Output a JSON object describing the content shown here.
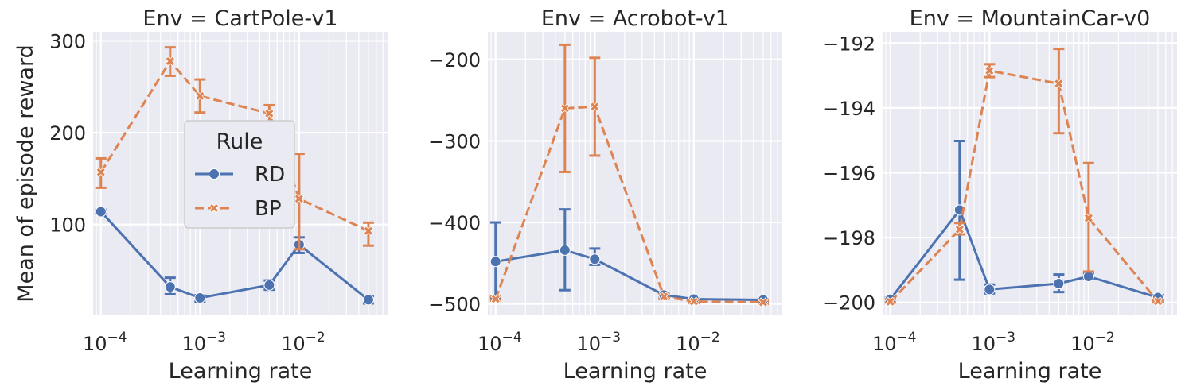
{
  "colors": {
    "RD": "#4c72b0",
    "BP": "#dd8452"
  },
  "legend": {
    "title": "Rule",
    "placement": "center (first panel)",
    "entries": [
      {
        "name": "RD",
        "marker": "circle",
        "style": "solid"
      },
      {
        "name": "BP",
        "marker": "x",
        "style": "dashed"
      }
    ]
  },
  "chart_data": [
    {
      "type": "line",
      "title": "Env = CartPole-v1",
      "xlabel": "Learning rate",
      "ylabel": "Mean of episode reward",
      "xscale": "log",
      "xlim": [
        8.35e-05,
        0.078
      ],
      "ylim": [
        1,
        310
      ],
      "xticks": [
        {
          "mantissa": "10",
          "exp": "−4"
        },
        {
          "mantissa": "10",
          "exp": "−3"
        },
        {
          "mantissa": "10",
          "exp": "−2"
        }
      ],
      "yticks": [
        "100",
        "200",
        "300"
      ],
      "ytick_values": [
        100,
        200,
        300
      ],
      "grid": true,
      "x": [
        0.0001,
        0.0005,
        0.001,
        0.005,
        0.01,
        0.05
      ],
      "series": [
        {
          "name": "RD",
          "y": [
            114,
            32,
            20,
            34,
            78,
            18
          ],
          "err_low": [
            112,
            24,
            16,
            29,
            69,
            14
          ],
          "err_high": [
            116,
            42,
            23,
            39,
            86,
            22
          ]
        },
        {
          "name": "BP",
          "y": [
            157,
            278,
            240,
            221,
            128,
            93
          ],
          "err_low": [
            140,
            262,
            222,
            211,
            73,
            77
          ],
          "err_high": [
            172,
            293,
            258,
            230,
            177,
            102
          ]
        }
      ]
    },
    {
      "type": "line",
      "title": "Env = Acrobot-v1",
      "xlabel": "Learning rate",
      "ylabel": "",
      "xscale": "log",
      "xlim": [
        8.35e-05,
        0.078
      ],
      "ylim": [
        -514,
        -166
      ],
      "xticks": [
        {
          "mantissa": "10",
          "exp": "−4"
        },
        {
          "mantissa": "10",
          "exp": "−3"
        },
        {
          "mantissa": "10",
          "exp": "−2"
        }
      ],
      "yticks": [
        "−500",
        "−400",
        "−300",
        "−200"
      ],
      "ytick_values": [
        -500,
        -400,
        -300,
        -200
      ],
      "grid": true,
      "x": [
        0.0001,
        0.0005,
        0.001,
        0.005,
        0.01,
        0.05
      ],
      "series": [
        {
          "name": "RD",
          "y": [
            -448,
            -434,
            -445,
            -489,
            -494,
            -495
          ],
          "err_low": [
            -492,
            -483,
            -452,
            -492,
            -496,
            -497
          ],
          "err_high": [
            -400,
            -384,
            -432,
            -487,
            -493,
            -494
          ]
        },
        {
          "name": "BP",
          "y": [
            -494,
            -260,
            -258,
            -491,
            -497,
            -498
          ],
          "err_low": [
            -496,
            -338,
            -318,
            -494,
            -499,
            -500
          ],
          "err_high": [
            -491,
            -182,
            -198,
            -488,
            -495,
            -496
          ]
        }
      ]
    },
    {
      "type": "line",
      "title": "Env = MountainCar-v0",
      "xlabel": "Learning rate",
      "ylabel": "",
      "xscale": "log",
      "xlim": [
        8.35e-05,
        0.078
      ],
      "ylim": [
        -200.4,
        -191.65
      ],
      "xticks": [
        {
          "mantissa": "10",
          "exp": "−4"
        },
        {
          "mantissa": "10",
          "exp": "−3"
        },
        {
          "mantissa": "10",
          "exp": "−2"
        }
      ],
      "yticks": [
        "−200",
        "−198",
        "−196",
        "−194",
        "−192"
      ],
      "ytick_values": [
        -200,
        -198,
        -196,
        -194,
        -192
      ],
      "grid": true,
      "x": [
        0.0001,
        0.0005,
        0.001,
        0.005,
        0.01,
        0.05
      ],
      "series": [
        {
          "name": "RD",
          "y": [
            -199.9,
            -197.15,
            -199.6,
            -199.42,
            -199.2,
            -199.85
          ],
          "err_low": [
            -200.0,
            -199.3,
            -199.72,
            -199.68,
            -199.28,
            -199.92
          ],
          "err_high": [
            -199.85,
            -195.02,
            -199.45,
            -199.14,
            -199.1,
            -199.78
          ]
        },
        {
          "name": "BP",
          "y": [
            -199.98,
            -197.75,
            -192.85,
            -193.25,
            -197.4,
            -199.97
          ],
          "err_low": [
            -200.0,
            -197.9,
            -193.05,
            -194.78,
            -199.05,
            -200.0
          ],
          "err_high": [
            -199.9,
            -197.55,
            -192.65,
            -192.18,
            -195.7,
            -199.92
          ]
        }
      ]
    }
  ]
}
